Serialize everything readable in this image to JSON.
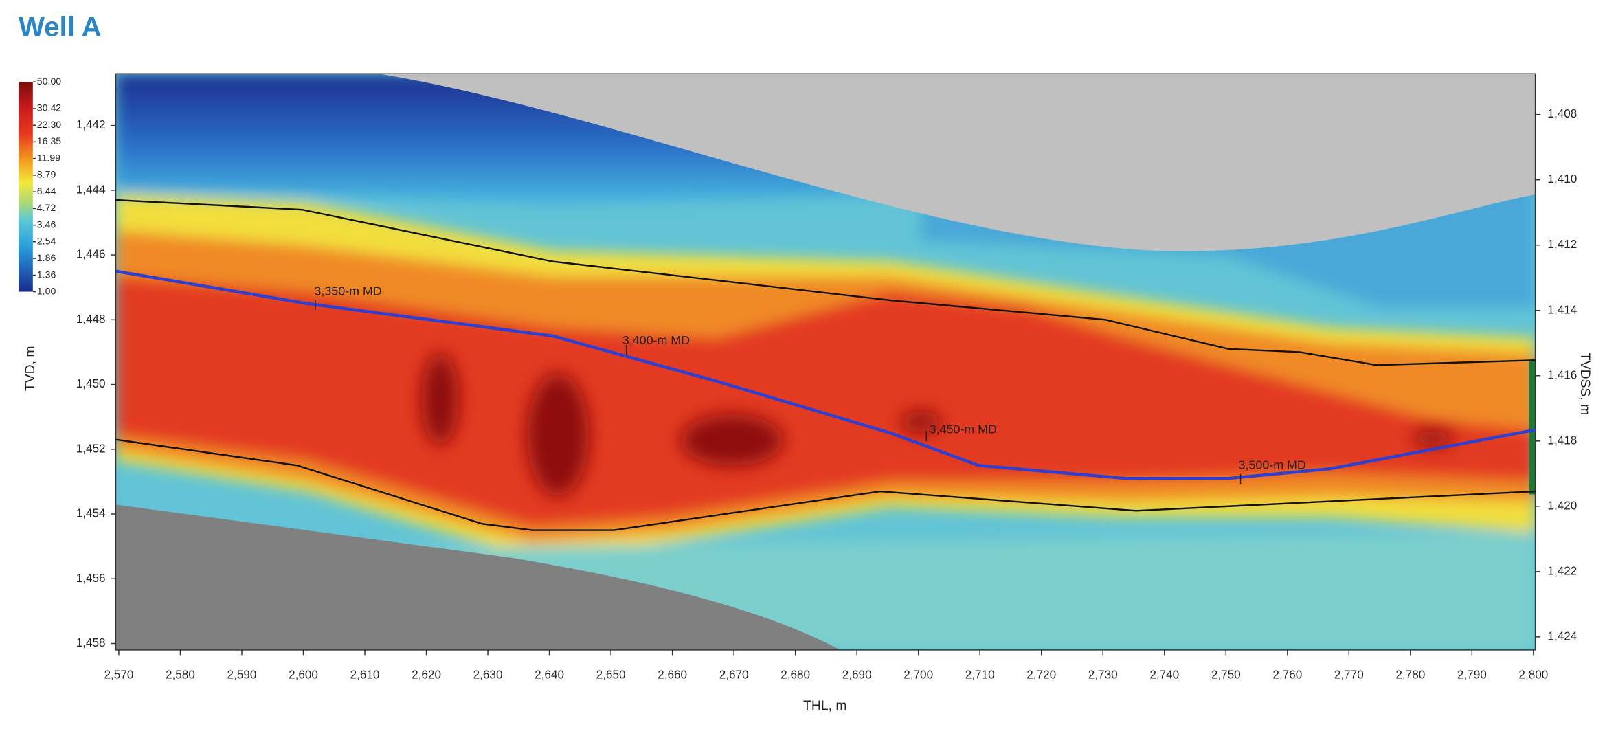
{
  "chart_data": {
    "type": "section",
    "title": "Well A",
    "x_label": "THL, m",
    "y_label": "TVD, m",
    "y2_label": "TVDSS, m",
    "xlim": [
      2569.5,
      2800.3
    ],
    "ylim": [
      1440.4,
      1458.2
    ],
    "y2lim": [
      1406.75,
      1424.4
    ],
    "y_inverted": true,
    "xticks": [
      {
        "value": 2570,
        "label": "2,570"
      },
      {
        "value": 2580,
        "label": "2,580"
      },
      {
        "value": 2590,
        "label": "2,590"
      },
      {
        "value": 2600,
        "label": "2,600"
      },
      {
        "value": 2610,
        "label": "2,610"
      },
      {
        "value": 2620,
        "label": "2,620"
      },
      {
        "value": 2630,
        "label": "2,630"
      },
      {
        "value": 2640,
        "label": "2,640"
      },
      {
        "value": 2650,
        "label": "2,650"
      },
      {
        "value": 2660,
        "label": "2,660"
      },
      {
        "value": 2670,
        "label": "2,670"
      },
      {
        "value": 2680,
        "label": "2,680"
      },
      {
        "value": 2690,
        "label": "2,690"
      },
      {
        "value": 2700,
        "label": "2,700"
      },
      {
        "value": 2710,
        "label": "2,710"
      },
      {
        "value": 2720,
        "label": "2,720"
      },
      {
        "value": 2730,
        "label": "2,730"
      },
      {
        "value": 2740,
        "label": "2,740"
      },
      {
        "value": 2750,
        "label": "2,750"
      },
      {
        "value": 2760,
        "label": "2,760"
      },
      {
        "value": 2770,
        "label": "2,770"
      },
      {
        "value": 2780,
        "label": "2,780"
      },
      {
        "value": 2790,
        "label": "2,790"
      },
      {
        "value": 2800,
        "label": "2,800"
      }
    ],
    "yticks": [
      {
        "value": 1442,
        "label": "1,442"
      },
      {
        "value": 1444,
        "label": "1,444"
      },
      {
        "value": 1446,
        "label": "1,446"
      },
      {
        "value": 1448,
        "label": "1,448"
      },
      {
        "value": 1450,
        "label": "1,450"
      },
      {
        "value": 1452,
        "label": "1,452"
      },
      {
        "value": 1454,
        "label": "1,454"
      },
      {
        "value": 1456,
        "label": "1,456"
      },
      {
        "value": 1458,
        "label": "1,458"
      }
    ],
    "y2ticks": [
      {
        "value": 1408,
        "label": "1,408"
      },
      {
        "value": 1410,
        "label": "1,410"
      },
      {
        "value": 1412,
        "label": "1,412"
      },
      {
        "value": 1414,
        "label": "1,414"
      },
      {
        "value": 1416,
        "label": "1,416"
      },
      {
        "value": 1418,
        "label": "1,418"
      },
      {
        "value": 1420,
        "label": "1,420"
      },
      {
        "value": 1422,
        "label": "1,422"
      },
      {
        "value": 1424,
        "label": "1,424"
      }
    ],
    "colorbar": {
      "log": true,
      "lim": [
        1,
        50
      ],
      "ticks": [
        {
          "value": 50,
          "label": "50.00"
        },
        {
          "value": 30.42,
          "label": "30.42"
        },
        {
          "value": 22.3,
          "label": "22.30"
        },
        {
          "value": 16.35,
          "label": "16.35"
        },
        {
          "value": 11.99,
          "label": "11.99"
        },
        {
          "value": 8.79,
          "label": "8.79"
        },
        {
          "value": 6.44,
          "label": "6.44"
        },
        {
          "value": 4.72,
          "label": "4.72"
        },
        {
          "value": 3.46,
          "label": "3.46"
        },
        {
          "value": 2.54,
          "label": "2.54"
        },
        {
          "value": 1.86,
          "label": "1.86"
        },
        {
          "value": 1.36,
          "label": "1.36"
        },
        {
          "value": 1,
          "label": "1.00"
        }
      ]
    },
    "series": [
      {
        "color": "#2f3fd0",
        "x": [
          2569.5,
          2600.6,
          2640.5,
          2667.2,
          2695.5,
          2709.8,
          2733.7,
          2750.4,
          2767,
          2783.6,
          2800.3
        ],
        "values": [
          1446.5,
          1447.5,
          1448.5,
          1449.9,
          1451.5,
          1452.5,
          1452.9,
          1452.9,
          1452.6,
          1452,
          1451.4
        ]
      },
      {
        "color": "#111111",
        "x": [
          2569.5,
          2599.8,
          2640.5,
          2695.5,
          2730.4,
          2750.4,
          2762,
          2774.5,
          2800.3
        ],
        "values": [
          1444.3,
          1444.6,
          1446.2,
          1447.4,
          1448,
          1448.9,
          1449,
          1449.4,
          1449.25
        ]
      },
      {
        "color": "#111111",
        "x": [
          2569.5,
          2599,
          2629,
          2637.2,
          2650.5,
          2693.8,
          2735.4,
          2800.3
        ],
        "values": [
          1451.7,
          1452.5,
          1454.3,
          1454.5,
          1454.5,
          1453.3,
          1453.9,
          1453.3
        ]
      }
    ],
    "annotations": [
      "3,350-m MD",
      "3,400-m MD",
      "3,450-m MD",
      "3,500-m MD"
    ]
  }
}
